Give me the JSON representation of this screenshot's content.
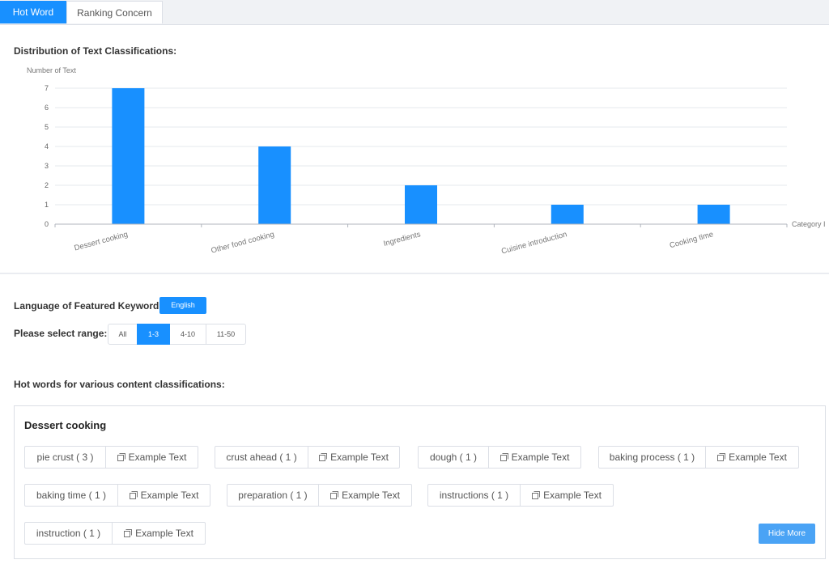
{
  "tabs": [
    {
      "label": "Hot Word",
      "active": true
    },
    {
      "label": "Ranking Concern",
      "active": false
    }
  ],
  "distribution": {
    "title": "Distribution of Text Classifications:"
  },
  "chart_data": {
    "type": "bar",
    "ylabel": "Number of Text",
    "xlabel": "Category I",
    "categories": [
      "Dessert cooking",
      "Other food cooking",
      "Ingredients",
      "Cuisine introduction",
      "Cooking time"
    ],
    "values": [
      7,
      4,
      2,
      1,
      1
    ],
    "yticks": [
      0,
      1,
      2,
      3,
      4,
      5,
      6,
      7
    ],
    "ylim": [
      0,
      7
    ],
    "grid": true,
    "color": "#1890ff"
  },
  "keyword_language": {
    "label": "Language of Featured Keyword:",
    "value": "English"
  },
  "range": {
    "label": "Please select range:",
    "options": [
      "All",
      "1-3",
      "4-10",
      "11-50"
    ],
    "selected": "1-3"
  },
  "hot_words": {
    "title": "Hot words for various content classifications:",
    "category": "Dessert cooking",
    "example_label": "Example Text",
    "items": [
      "pie crust ( 3 )",
      "crust ahead ( 1 )",
      "dough ( 1 )",
      "baking process ( 1 )",
      "baking time ( 1 )",
      "preparation ( 1 )",
      "instructions ( 1 )",
      "instruction ( 1 )"
    ],
    "hide_more_label": "Hide More"
  },
  "colors": {
    "accent": "#1890ff",
    "hide_button": "#4aa3f5"
  }
}
